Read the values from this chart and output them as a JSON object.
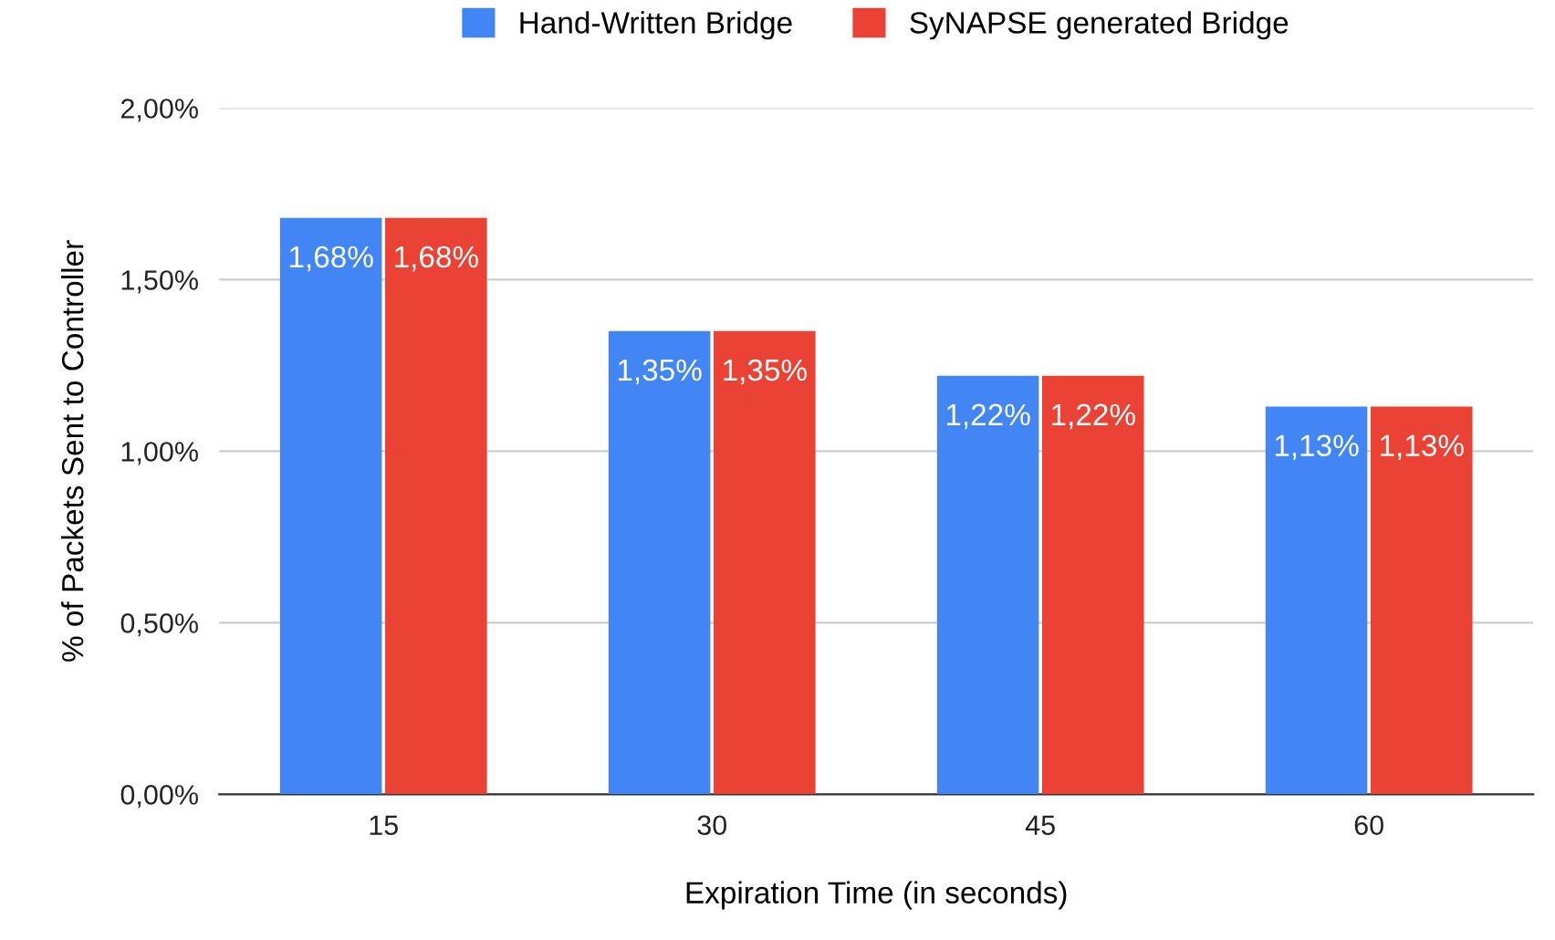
{
  "chart_data": {
    "type": "bar",
    "xlabel": "Expiration Time (in seconds)",
    "ylabel": "% of Packets Sent to Controller",
    "categories": [
      "15",
      "30",
      "45",
      "60"
    ],
    "series": [
      {
        "name": "Hand-Written Bridge",
        "color": "#4285f4",
        "values": [
          1.68,
          1.35,
          1.22,
          1.13
        ],
        "value_labels": [
          "1,68%",
          "1,35%",
          "1,22%",
          "1,13%"
        ]
      },
      {
        "name": "SyNAPSE generated Bridge",
        "color": "#ea4335",
        "values": [
          1.68,
          1.35,
          1.22,
          1.13
        ],
        "value_labels": [
          "1,68%",
          "1,35%",
          "1,22%",
          "1,13%"
        ]
      }
    ],
    "ylim": [
      0,
      2
    ],
    "yticks": [
      {
        "value": 0,
        "label": "0,00%"
      },
      {
        "value": 0.5,
        "label": "0,50%"
      },
      {
        "value": 1,
        "label": "1,00%"
      },
      {
        "value": 1.5,
        "label": "1,50%"
      },
      {
        "value": 2,
        "label": "2,00%"
      }
    ],
    "grid": "y",
    "legend": "top"
  }
}
